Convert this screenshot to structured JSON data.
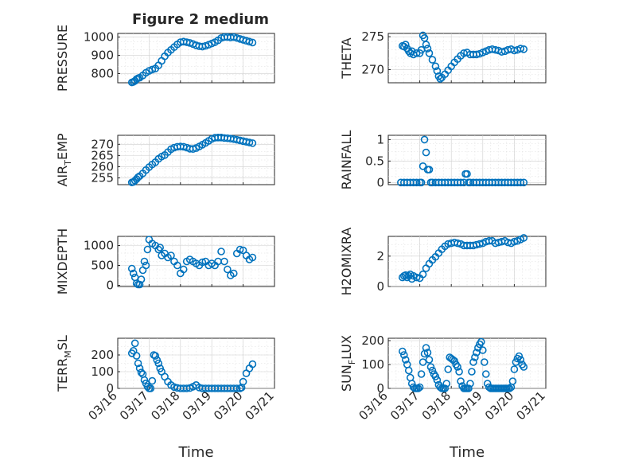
{
  "figure": {
    "title": "Figure 2 medium",
    "marker_color": "#0072BD"
  },
  "chart_data": [
    {
      "type": "scatter",
      "ylabel": "PRESSURE",
      "ylabel_sub": "",
      "ylabel_tail": "",
      "xlim": [
        0,
        5
      ],
      "ylim": [
        750,
        1020
      ],
      "yticks": [
        800,
        900,
        1000
      ],
      "xticks": [],
      "xlabel": "",
      "x": [
        0.45,
        0.5,
        0.55,
        0.6,
        0.65,
        0.7,
        0.8,
        0.9,
        1.0,
        1.1,
        1.2,
        1.3,
        1.4,
        1.5,
        1.6,
        1.7,
        1.8,
        1.9,
        2.0,
        2.1,
        2.2,
        2.3,
        2.4,
        2.5,
        2.6,
        2.7,
        2.8,
        2.9,
        3.0,
        3.1,
        3.2,
        3.3,
        3.4,
        3.5,
        3.6,
        3.7,
        3.8,
        3.9,
        4.0,
        4.1,
        4.2,
        4.3
      ],
      "y": [
        752,
        755,
        760,
        770,
        775,
        778,
        790,
        805,
        815,
        822,
        828,
        845,
        870,
        895,
        915,
        930,
        945,
        960,
        972,
        975,
        972,
        968,
        962,
        955,
        950,
        948,
        952,
        958,
        965,
        972,
        982,
        995,
        1000,
        1000,
        998,
        1000,
        995,
        990,
        985,
        980,
        975,
        970
      ]
    },
    {
      "type": "scatter",
      "ylabel": "THETA",
      "ylabel_sub": "",
      "ylabel_tail": "",
      "xlim": [
        0,
        5
      ],
      "ylim": [
        268,
        275.5
      ],
      "yticks": [
        270,
        275
      ],
      "xticks": [],
      "xlabel": "",
      "x": [
        0.45,
        0.5,
        0.55,
        0.6,
        0.65,
        0.7,
        0.75,
        0.8,
        0.9,
        1.0,
        1.05,
        1.1,
        1.15,
        1.2,
        1.25,
        1.3,
        1.4,
        1.5,
        1.55,
        1.6,
        1.65,
        1.7,
        1.8,
        1.9,
        2.0,
        2.1,
        2.2,
        2.3,
        2.4,
        2.5,
        2.6,
        2.7,
        2.8,
        2.9,
        3.0,
        3.1,
        3.2,
        3.3,
        3.4,
        3.5,
        3.6,
        3.7,
        3.8,
        3.9,
        4.0,
        4.1,
        4.2,
        4.3
      ],
      "y": [
        273.6,
        273.5,
        273.8,
        273.2,
        272.8,
        272.5,
        272.8,
        272.3,
        272.5,
        272.5,
        273.0,
        275.2,
        274.8,
        273.8,
        273.2,
        272.5,
        271.5,
        270.5,
        269.8,
        269.0,
        268.6,
        268.8,
        269.3,
        269.9,
        270.5,
        271.1,
        271.6,
        272.1,
        272.5,
        272.6,
        272.3,
        272.3,
        272.3,
        272.4,
        272.6,
        272.8,
        273.0,
        273.1,
        273.0,
        272.9,
        272.7,
        272.8,
        273.0,
        273.1,
        272.9,
        273.0,
        273.2,
        273.1
      ]
    },
    {
      "type": "scatter",
      "ylabel": "AIR",
      "ylabel_sub": "T",
      "ylabel_tail": "EMP",
      "xlim": [
        0,
        5
      ],
      "ylim": [
        252,
        274
      ],
      "yticks": [
        255,
        260,
        265,
        270
      ],
      "xticks": [],
      "xlabel": "",
      "x": [
        0.45,
        0.5,
        0.55,
        0.6,
        0.65,
        0.7,
        0.8,
        0.9,
        1.0,
        1.1,
        1.2,
        1.3,
        1.4,
        1.5,
        1.6,
        1.7,
        1.8,
        1.9,
        2.0,
        2.1,
        2.2,
        2.3,
        2.4,
        2.5,
        2.6,
        2.7,
        2.8,
        2.9,
        3.0,
        3.1,
        3.2,
        3.3,
        3.4,
        3.5,
        3.6,
        3.7,
        3.8,
        3.9,
        4.0,
        4.1,
        4.2,
        4.3
      ],
      "y": [
        253.0,
        253.2,
        253.8,
        254.5,
        255.3,
        255.8,
        257.0,
        258.5,
        259.8,
        261.0,
        262.0,
        263.5,
        264.5,
        265.2,
        266.5,
        267.8,
        268.5,
        268.9,
        269.0,
        268.9,
        268.5,
        268.0,
        267.9,
        268.3,
        269.0,
        269.8,
        270.6,
        271.5,
        272.4,
        272.9,
        273.0,
        273.0,
        272.8,
        272.7,
        272.5,
        272.3,
        272.0,
        271.7,
        271.4,
        271.1,
        270.8,
        270.5
      ]
    },
    {
      "type": "scatter",
      "ylabel": "RAINFALL",
      "ylabel_sub": "",
      "ylabel_tail": "",
      "xlim": [
        0,
        5
      ],
      "ylim": [
        -0.05,
        1.1
      ],
      "yticks": [
        0,
        0.5,
        1
      ],
      "xticks": [],
      "xlabel": "",
      "x": [
        0.4,
        0.5,
        0.6,
        0.7,
        0.8,
        0.9,
        1.0,
        1.05,
        1.1,
        1.15,
        1.2,
        1.25,
        1.3,
        1.35,
        1.4,
        1.5,
        1.6,
        1.7,
        1.8,
        1.9,
        2.0,
        2.1,
        2.2,
        2.3,
        2.4,
        2.45,
        2.5,
        2.55,
        2.6,
        2.7,
        2.8,
        2.9,
        3.0,
        3.1,
        3.2,
        3.3,
        3.4,
        3.5,
        3.6,
        3.7,
        3.8,
        3.9,
        4.0,
        4.1,
        4.2,
        4.3
      ],
      "y": [
        0,
        0,
        0,
        0,
        0,
        0,
        0,
        0,
        0.38,
        1.0,
        0.7,
        0.3,
        0.3,
        0,
        0,
        0,
        0,
        0,
        0,
        0,
        0,
        0,
        0,
        0,
        0,
        0.2,
        0.2,
        0,
        0,
        0,
        0,
        0,
        0,
        0,
        0,
        0,
        0,
        0,
        0,
        0,
        0,
        0,
        0,
        0,
        0,
        0
      ]
    },
    {
      "type": "scatter",
      "ylabel": "MIXDEPTH",
      "ylabel_sub": "",
      "ylabel_tail": "",
      "xlim": [
        0,
        5
      ],
      "ylim": [
        -30,
        1230
      ],
      "yticks": [
        0,
        500,
        1000
      ],
      "xticks": [],
      "xlabel": "",
      "x": [
        0.45,
        0.5,
        0.55,
        0.6,
        0.65,
        0.7,
        0.75,
        0.8,
        0.85,
        0.9,
        0.95,
        1.0,
        1.1,
        1.2,
        1.3,
        1.35,
        1.4,
        1.5,
        1.6,
        1.7,
        1.8,
        1.9,
        2.0,
        2.1,
        2.2,
        2.3,
        2.4,
        2.5,
        2.6,
        2.7,
        2.8,
        2.9,
        3.0,
        3.1,
        3.2,
        3.3,
        3.4,
        3.5,
        3.6,
        3.7,
        3.8,
        3.9,
        4.0,
        4.1,
        4.2,
        4.3
      ],
      "y": [
        420,
        300,
        200,
        50,
        20,
        20,
        150,
        380,
        600,
        500,
        900,
        1150,
        1050,
        1000,
        900,
        950,
        750,
        800,
        700,
        750,
        600,
        500,
        300,
        400,
        600,
        650,
        600,
        550,
        500,
        580,
        600,
        500,
        550,
        500,
        600,
        850,
        600,
        400,
        250,
        300,
        800,
        900,
        880,
        750,
        650,
        700
      ]
    },
    {
      "type": "scatter",
      "ylabel": "H2OMIXRA",
      "ylabel_sub": "",
      "ylabel_tail": "",
      "xlim": [
        0,
        5
      ],
      "ylim": [
        0,
        3.3
      ],
      "yticks": [
        0,
        2
      ],
      "xticks": [],
      "xlabel": "",
      "x": [
        0.45,
        0.5,
        0.55,
        0.6,
        0.65,
        0.7,
        0.75,
        0.8,
        0.9,
        1.0,
        1.1,
        1.2,
        1.3,
        1.4,
        1.5,
        1.6,
        1.7,
        1.8,
        1.9,
        2.0,
        2.1,
        2.2,
        2.3,
        2.4,
        2.5,
        2.6,
        2.7,
        2.8,
        2.9,
        3.0,
        3.1,
        3.2,
        3.3,
        3.4,
        3.5,
        3.6,
        3.7,
        3.8,
        3.9,
        4.0,
        4.1,
        4.2,
        4.3
      ],
      "y": [
        0.6,
        0.7,
        0.75,
        0.6,
        0.7,
        0.8,
        0.5,
        0.7,
        0.6,
        0.55,
        0.8,
        1.2,
        1.5,
        1.75,
        1.95,
        2.2,
        2.45,
        2.65,
        2.8,
        2.85,
        2.9,
        2.85,
        2.8,
        2.7,
        2.7,
        2.7,
        2.7,
        2.75,
        2.8,
        2.85,
        2.95,
        3.0,
        3.0,
        2.85,
        2.9,
        2.95,
        3.0,
        2.9,
        2.85,
        2.95,
        3.0,
        3.1,
        3.2
      ]
    },
    {
      "type": "scatter",
      "ylabel": "TERR",
      "ylabel_sub": "M",
      "ylabel_tail": "SL",
      "xlim": [
        0,
        5
      ],
      "ylim": [
        0,
        300
      ],
      "yticks": [
        0,
        100,
        200
      ],
      "xticks": [
        "03/16",
        "03/17",
        "03/18",
        "03/19",
        "03/20",
        "03/21"
      ],
      "xlabel": "Time",
      "x": [
        0.45,
        0.5,
        0.55,
        0.6,
        0.65,
        0.7,
        0.75,
        0.8,
        0.85,
        0.9,
        0.95,
        1.0,
        1.05,
        1.1,
        1.15,
        1.2,
        1.25,
        1.3,
        1.35,
        1.4,
        1.5,
        1.6,
        1.7,
        1.8,
        1.9,
        2.0,
        2.1,
        2.2,
        2.3,
        2.4,
        2.5,
        2.6,
        2.7,
        2.8,
        2.9,
        3.0,
        3.1,
        3.2,
        3.3,
        3.4,
        3.5,
        3.6,
        3.7,
        3.8,
        3.9,
        3.95,
        4.0,
        4.1,
        4.2,
        4.3
      ],
      "y": [
        210,
        225,
        270,
        195,
        150,
        120,
        95,
        85,
        50,
        30,
        10,
        0,
        0,
        45,
        200,
        195,
        170,
        150,
        120,
        100,
        70,
        40,
        20,
        8,
        3,
        0,
        0,
        0,
        2,
        10,
        20,
        5,
        0,
        0,
        0,
        0,
        0,
        0,
        0,
        0,
        0,
        0,
        0,
        0,
        0,
        5,
        40,
        90,
        120,
        145
      ]
    },
    {
      "type": "scatter",
      "ylabel": "SUN",
      "ylabel_sub": "F",
      "ylabel_tail": "LUX",
      "xlim": [
        0,
        5
      ],
      "ylim": [
        0,
        210
      ],
      "yticks": [
        0,
        100,
        200
      ],
      "xticks": [
        "03/16",
        "03/17",
        "03/18",
        "03/19",
        "03/20",
        "03/21"
      ],
      "xlabel": "Time",
      "x": [
        0.45,
        0.5,
        0.55,
        0.6,
        0.65,
        0.7,
        0.75,
        0.8,
        0.85,
        0.9,
        0.95,
        1.0,
        1.05,
        1.1,
        1.15,
        1.2,
        1.25,
        1.3,
        1.35,
        1.4,
        1.45,
        1.5,
        1.55,
        1.6,
        1.65,
        1.7,
        1.75,
        1.8,
        1.85,
        1.9,
        1.95,
        2.0,
        2.05,
        2.1,
        2.15,
        2.2,
        2.25,
        2.3,
        2.35,
        2.4,
        2.45,
        2.5,
        2.55,
        2.6,
        2.65,
        2.7,
        2.75,
        2.8,
        2.85,
        2.9,
        2.95,
        3.0,
        3.05,
        3.1,
        3.15,
        3.2,
        3.25,
        3.3,
        3.35,
        3.4,
        3.45,
        3.5,
        3.55,
        3.6,
        3.65,
        3.7,
        3.75,
        3.8,
        3.85,
        3.9,
        3.95,
        4.0,
        4.05,
        4.1,
        4.15,
        4.2,
        4.25,
        4.3
      ],
      "y": [
        155,
        140,
        120,
        100,
        75,
        45,
        20,
        5,
        0,
        0,
        0,
        5,
        60,
        110,
        145,
        170,
        150,
        120,
        90,
        75,
        60,
        50,
        35,
        15,
        5,
        0,
        0,
        0,
        20,
        80,
        130,
        125,
        120,
        115,
        100,
        90,
        70,
        30,
        10,
        0,
        0,
        0,
        0,
        20,
        70,
        110,
        130,
        150,
        170,
        185,
        195,
        160,
        110,
        60,
        20,
        5,
        0,
        0,
        0,
        0,
        0,
        0,
        0,
        0,
        0,
        0,
        0,
        0,
        0,
        5,
        30,
        80,
        110,
        125,
        135,
        120,
        100,
        90
      ]
    }
  ]
}
